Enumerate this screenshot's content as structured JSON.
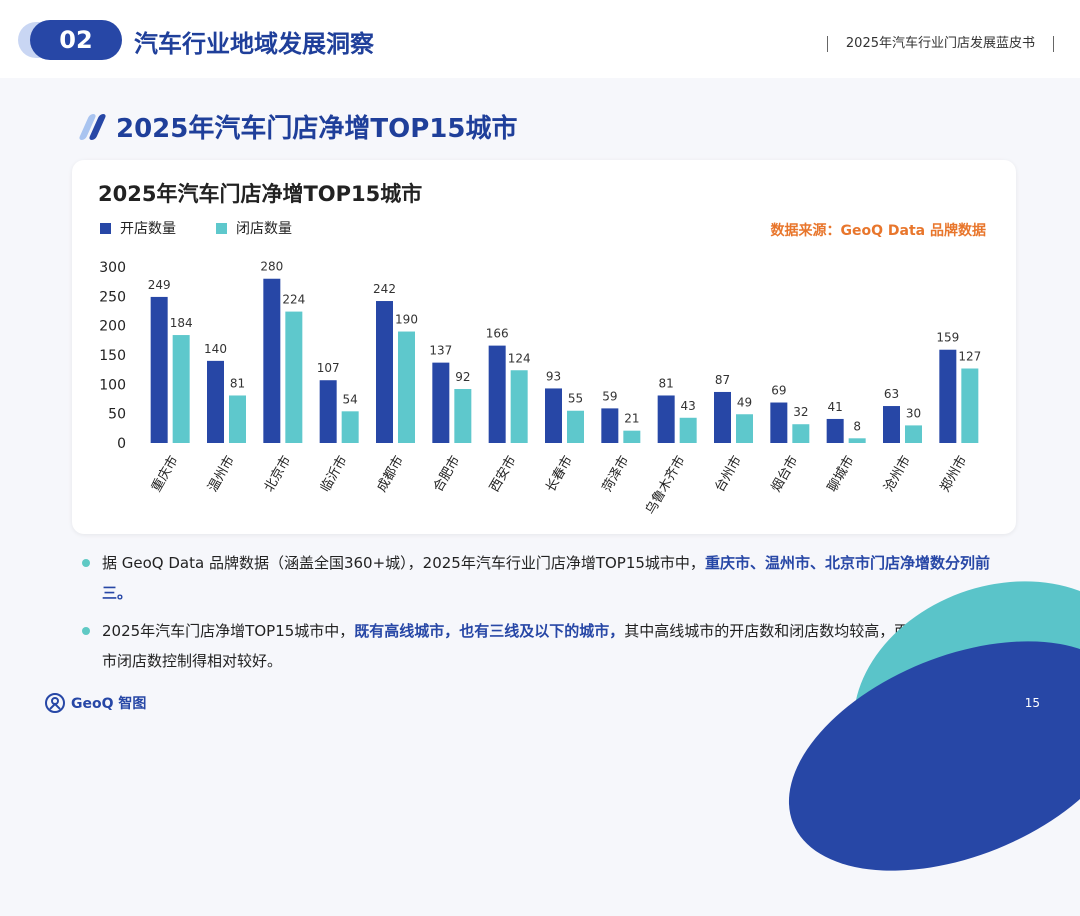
{
  "header": {
    "section_num": "02",
    "section_title": "汽车行业地域发展洞察",
    "book_title": "2025年汽车行业门店发展蓝皮书"
  },
  "page": {
    "title": "2025年汽车门店净增TOP15城市",
    "page_number": "15"
  },
  "chart_data": {
    "type": "bar",
    "title": "2025年汽车门店净增TOP15城市",
    "source": "数据来源：GeoQ Data 品牌数据",
    "categories": [
      "重庆市",
      "温州市",
      "北京市",
      "临沂市",
      "成都市",
      "合肥市",
      "西安市",
      "长春市",
      "菏泽市",
      "乌鲁木齐市",
      "台州市",
      "烟台市",
      "聊城市",
      "沧州市",
      "郑州市"
    ],
    "series": [
      {
        "name": "开店数量",
        "color": "#2747a6",
        "values": [
          249,
          140,
          280,
          107,
          242,
          137,
          166,
          93,
          59,
          81,
          87,
          69,
          41,
          63,
          159
        ]
      },
      {
        "name": "闭店数量",
        "color": "#5ec8cc",
        "values": [
          184,
          81,
          224,
          54,
          190,
          92,
          124,
          55,
          21,
          43,
          49,
          32,
          8,
          30,
          127
        ]
      }
    ],
    "yticks": [
      0,
      50,
      100,
      150,
      200,
      250,
      300
    ],
    "ylim": [
      0,
      300
    ],
    "legend": "top-left",
    "grid": false
  },
  "bullets": [
    {
      "parts": [
        {
          "text": "据 GeoQ Data 品牌数据（涵盖全国360+城），2025年汽车行业门店净增TOP15城市中，",
          "hl": false
        },
        {
          "text": "重庆市、温州市、北京市门店净增数分列前三。",
          "hl": true
        }
      ]
    },
    {
      "parts": [
        {
          "text": "2025年汽车门店净增TOP15城市中，",
          "hl": false
        },
        {
          "text": "既有高线城市，也有三线及以下的城市，",
          "hl": true
        },
        {
          "text": "其中高线城市的开店数和闭店数均较高，而入榜的中低线城市闭店数控制得相对较好。",
          "hl": false
        }
      ]
    }
  ],
  "footer": {
    "logo_text": "GeoQ 智图"
  }
}
